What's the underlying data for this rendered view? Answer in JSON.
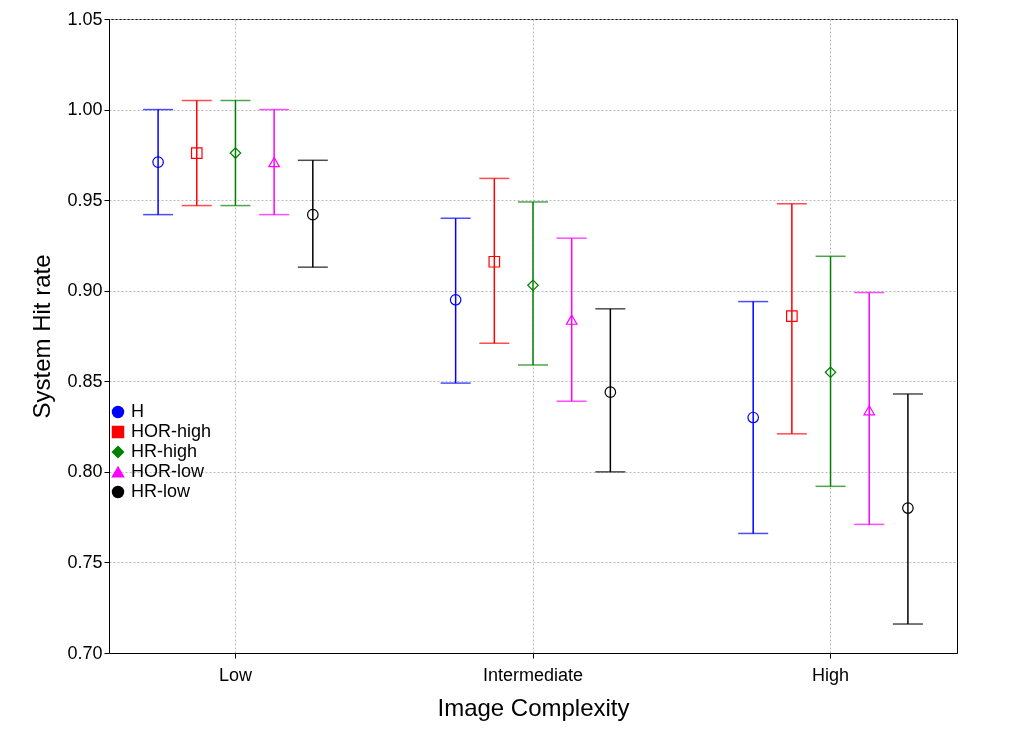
{
  "chart_data": {
    "type": "scatter",
    "xlabel": "Image Complexity",
    "ylabel": "System Hit rate",
    "categories": [
      "Low",
      "Intermediate",
      "High"
    ],
    "ylim": [
      0.7,
      1.05
    ],
    "yticks": [
      {
        "value": 0.7,
        "label": "0.70"
      },
      {
        "value": 0.75,
        "label": "0.75"
      },
      {
        "value": 0.8,
        "label": "0.80"
      },
      {
        "value": 0.85,
        "label": "0.85"
      },
      {
        "value": 0.9,
        "label": "0.90"
      },
      {
        "value": 0.95,
        "label": "0.95"
      },
      {
        "value": 1.0,
        "label": "1.00"
      },
      {
        "value": 1.05,
        "label": "1.05"
      }
    ],
    "grid": true,
    "legend": "bottom left",
    "series": [
      {
        "name": "H",
        "color": "#0000ff",
        "marker": "circle",
        "values": [
          0.971,
          0.895,
          0.83
        ],
        "errors": [
          [
            0.942,
            1.0
          ],
          [
            0.849,
            0.94
          ],
          [
            0.766,
            0.894
          ]
        ]
      },
      {
        "name": "HOR-high",
        "color": "#ff0000",
        "marker": "square",
        "values": [
          0.976,
          0.916,
          0.886
        ],
        "errors": [
          [
            0.947,
            1.005
          ],
          [
            0.871,
            0.962
          ],
          [
            0.821,
            0.948
          ]
        ]
      },
      {
        "name": "HR-high",
        "color": "#008000",
        "marker": "diamond",
        "values": [
          0.976,
          0.903,
          0.855
        ],
        "errors": [
          [
            0.947,
            1.005
          ],
          [
            0.859,
            0.949
          ],
          [
            0.792,
            0.919
          ]
        ]
      },
      {
        "name": "HOR-low",
        "color": "#ff00ff",
        "marker": "triangle",
        "values": [
          0.971,
          0.884,
          0.834
        ],
        "errors": [
          [
            0.942,
            1.0
          ],
          [
            0.839,
            0.929
          ],
          [
            0.771,
            0.899
          ]
        ]
      },
      {
        "name": "HR-low",
        "color": "#000000",
        "marker": "circle",
        "values": [
          0.942,
          0.844,
          0.78
        ],
        "errors": [
          [
            0.913,
            0.972
          ],
          [
            0.8,
            0.89
          ],
          [
            0.716,
            0.843
          ]
        ]
      }
    ]
  }
}
